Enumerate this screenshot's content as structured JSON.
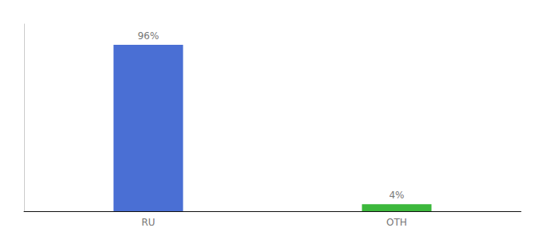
{
  "chart_data": {
    "type": "bar",
    "categories": [
      "RU",
      "OTH"
    ],
    "values": [
      96,
      4
    ],
    "value_labels": [
      "96%",
      "4%"
    ],
    "colors": [
      "#4A6FD4",
      "#3CB83C"
    ],
    "data_labels": true,
    "ylim": [
      0,
      108
    ],
    "tick_labels": "x",
    "grid": false
  }
}
